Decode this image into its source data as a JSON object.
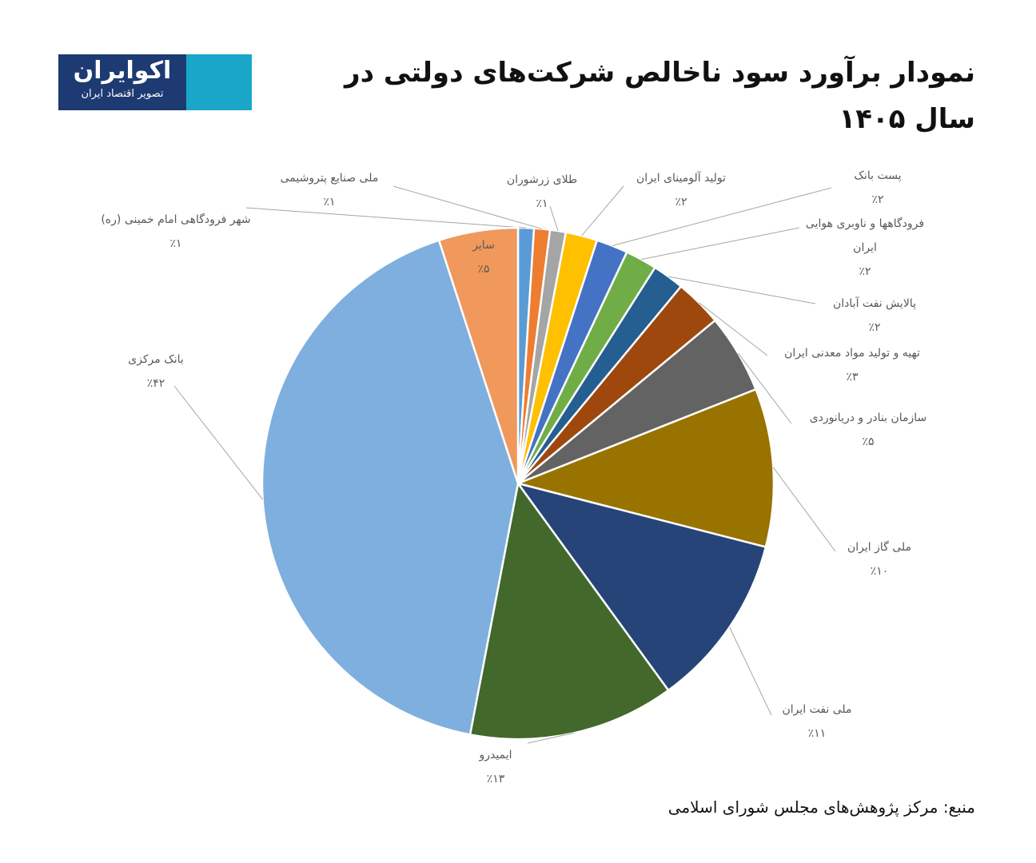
{
  "logo": {
    "name": "اکوایران",
    "tagline": "تصویر اقتصاد ایران"
  },
  "chart_data": {
    "type": "pie",
    "title": "نمودار برآورد سود ناخالص شرکت‌های دولتی در سال ۱۴۰۵",
    "source": "منبع: مرکز پژوهش‌های مجلس شورای اسلامی",
    "categories": [
      "شهر فرودگاهی امام خمینی (ره)",
      "ملی صنایع پتروشیمی",
      "طلای زرشوران",
      "تولید آلومینای ایران",
      "پست بانک",
      "فرودگاهها و ناوبری هوایی ایران",
      "پالایش نفت آبادان",
      "تهیه و تولید مواد معدنی ایران",
      "سازمان بنادر و دریانوردی",
      "ملی گاز ایران",
      "ملی نفت ایران",
      "ایمیدرو",
      "بانک مرکزی",
      "سایر"
    ],
    "values": [
      1,
      1,
      1,
      2,
      2,
      2,
      2,
      3,
      5,
      10,
      11,
      13,
      42,
      5
    ],
    "value_labels": [
      "٪۱",
      "٪۱",
      "٪۱",
      "٪۲",
      "٪۲",
      "٪۲",
      "٪۲",
      "٪۳",
      "٪۵",
      "٪۱۰",
      "٪۱۱",
      "٪۱۳",
      "٪۴۲",
      "٪۵"
    ],
    "colors": [
      "#5b9bd5",
      "#ed7d31",
      "#a5a5a5",
      "#ffc000",
      "#4472c4",
      "#70ad47",
      "#255e91",
      "#9e480e",
      "#636363",
      "#997300",
      "#264478",
      "#43682b",
      "#7eafde",
      "#f1985c"
    ]
  }
}
